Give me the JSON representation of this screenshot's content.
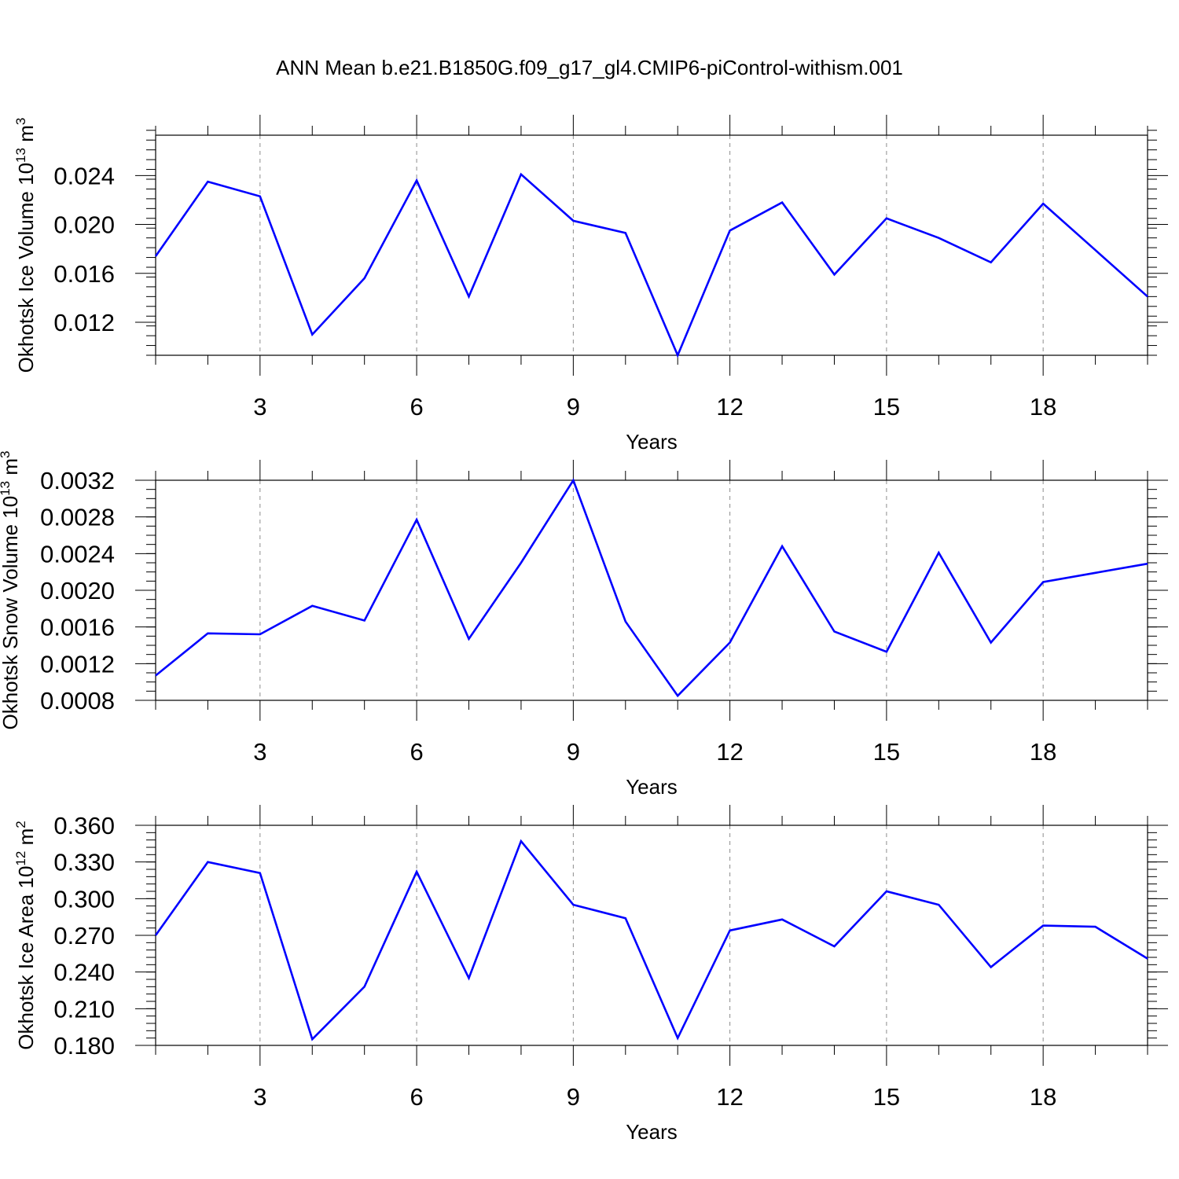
{
  "figure": {
    "title": "ANN Mean b.e21.B1850G.f09_g17_gl4.CMIP6-piControl-withism.001",
    "line_color": "#0000ff",
    "grid_color": "#8c8c8c"
  },
  "chart_data": [
    {
      "type": "line",
      "ylabel_main": "Okhotsk Ice Volume 10",
      "ylabel_exp": "13",
      "ylabel_unit": " m",
      "ylabel_unit_exp": "3",
      "xlabel": "Years",
      "xlim": [
        1,
        20
      ],
      "ylim": [
        0.0093,
        0.0273
      ],
      "x_ticks": [
        3,
        6,
        9,
        12,
        15,
        18
      ],
      "x_tick_labels": [
        "3",
        "6",
        "9",
        "12",
        "15",
        "18"
      ],
      "y_ticks": [
        0.012,
        0.016,
        0.02,
        0.024
      ],
      "y_tick_labels": [
        "0.012",
        "0.016",
        "0.020",
        "0.024"
      ],
      "y_minor_step": 0.0008,
      "grid": "vertical dashed at major x ticks",
      "series": [
        {
          "x": [
            1,
            2,
            3,
            4,
            5,
            6,
            7,
            8,
            9,
            10,
            11,
            12,
            13,
            14,
            15,
            16,
            17,
            18,
            19,
            20
          ],
          "values": [
            0.0174,
            0.0235,
            0.0223,
            0.011,
            0.0156,
            0.0236,
            0.0141,
            0.0241,
            0.0203,
            0.0193,
            0.0093,
            0.0195,
            0.0218,
            0.0159,
            0.0205,
            0.0189,
            0.0169,
            0.0217,
            0.0179,
            0.0141
          ]
        }
      ]
    },
    {
      "type": "line",
      "ylabel_main": "Okhotsk Snow Volume 10",
      "ylabel_exp": "13",
      "ylabel_unit": " m",
      "ylabel_unit_exp": "3",
      "xlabel": "Years",
      "xlim": [
        1,
        20
      ],
      "ylim": [
        0.0008,
        0.0032
      ],
      "x_ticks": [
        3,
        6,
        9,
        12,
        15,
        18
      ],
      "x_tick_labels": [
        "3",
        "6",
        "9",
        "12",
        "15",
        "18"
      ],
      "y_ticks": [
        0.0008,
        0.0012,
        0.0016,
        0.002,
        0.0024,
        0.0028,
        0.0032
      ],
      "y_tick_labels": [
        "0.0008",
        "0.0012",
        "0.0016",
        "0.0020",
        "0.0024",
        "0.0028",
        "0.0032"
      ],
      "y_minor_step": 0.0001,
      "grid": "vertical dashed at major x ticks",
      "series": [
        {
          "x": [
            1,
            2,
            3,
            4,
            5,
            6,
            7,
            8,
            9,
            10,
            11,
            12,
            13,
            14,
            15,
            16,
            17,
            18,
            19,
            20
          ],
          "values": [
            0.00107,
            0.00153,
            0.00152,
            0.00183,
            0.00167,
            0.00277,
            0.00147,
            0.0023,
            0.0032,
            0.00166,
            0.00085,
            0.00143,
            0.00248,
            0.00155,
            0.00133,
            0.00241,
            0.00143,
            0.00209,
            0.00219,
            0.00229
          ]
        }
      ]
    },
    {
      "type": "line",
      "ylabel_main": "Okhotsk Ice Area 10",
      "ylabel_exp": "12",
      "ylabel_unit": " m",
      "ylabel_unit_exp": "2",
      "xlabel": "Years",
      "xlim": [
        1,
        20
      ],
      "ylim": [
        0.18,
        0.36
      ],
      "x_ticks": [
        3,
        6,
        9,
        12,
        15,
        18
      ],
      "x_tick_labels": [
        "3",
        "6",
        "9",
        "12",
        "15",
        "18"
      ],
      "y_ticks": [
        0.18,
        0.21,
        0.24,
        0.27,
        0.3,
        0.33,
        0.36
      ],
      "y_tick_labels": [
        "0.180",
        "0.210",
        "0.240",
        "0.270",
        "0.300",
        "0.330",
        "0.360"
      ],
      "y_minor_step": 0.006,
      "grid": "vertical dashed at major x ticks",
      "series": [
        {
          "x": [
            1,
            2,
            3,
            4,
            5,
            6,
            7,
            8,
            9,
            10,
            11,
            12,
            13,
            14,
            15,
            16,
            17,
            18,
            19,
            20
          ],
          "values": [
            0.27,
            0.33,
            0.321,
            0.185,
            0.228,
            0.322,
            0.235,
            0.347,
            0.295,
            0.284,
            0.186,
            0.274,
            0.283,
            0.261,
            0.306,
            0.295,
            0.244,
            0.278,
            0.277,
            0.251
          ]
        }
      ]
    }
  ]
}
